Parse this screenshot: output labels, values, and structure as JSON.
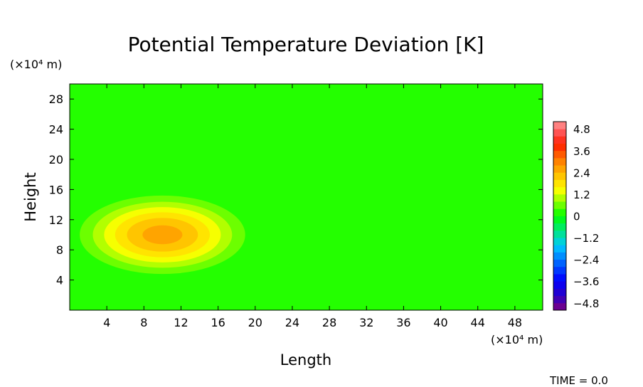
{
  "chart_data": {
    "type": "heatmap",
    "title": "Potential Temperature Deviation [K]",
    "xlabel": "Length",
    "ylabel": "Height",
    "x_unit": "(×10⁴ m)",
    "y_unit": "(×10⁴ m)",
    "xlim": [
      0,
      51
    ],
    "ylim": [
      0,
      30
    ],
    "x_ticks": [
      4,
      8,
      12,
      16,
      20,
      24,
      28,
      32,
      36,
      40,
      44,
      48
    ],
    "y_ticks": [
      4,
      8,
      12,
      16,
      20,
      24,
      28
    ],
    "background_value": 0,
    "bubble": {
      "center_x": 10,
      "center_y": 10,
      "peak_value": 2.6,
      "radius_x": 12,
      "radius_y": 7
    },
    "colorbar": {
      "min": -5.2,
      "max": 5.2,
      "levels": 26,
      "tick_values": [
        4.8,
        3.6,
        2.4,
        1.2,
        0,
        -1.2,
        -2.4,
        -3.6,
        -4.8
      ],
      "tick_labels": [
        "4.8",
        "3.6",
        "2.4",
        "1.2",
        "0",
        "−1.2",
        "−2.4",
        "−3.6",
        "−4.8"
      ]
    },
    "footer": "TIME  =  0.0"
  }
}
